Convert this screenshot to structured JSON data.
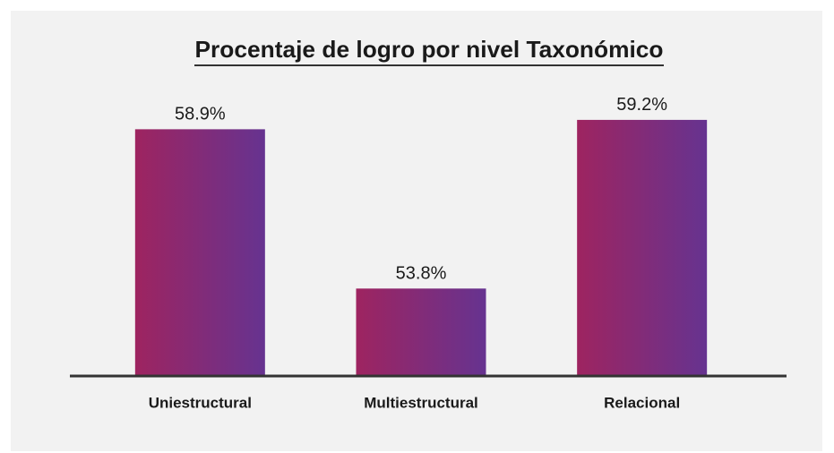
{
  "chart_data": {
    "type": "bar",
    "title": "Procentaje de logro por nivel Taxonómico",
    "categories": [
      "Uniestructural",
      "Multiestructural",
      "Relacional"
    ],
    "values": [
      58.9,
      53.8,
      59.2
    ],
    "value_labels": [
      "58.9%",
      "53.8%",
      "59.2%"
    ],
    "gradient": [
      "#9e2460",
      "#663390"
    ],
    "ylim": [
      51,
      60
    ]
  }
}
